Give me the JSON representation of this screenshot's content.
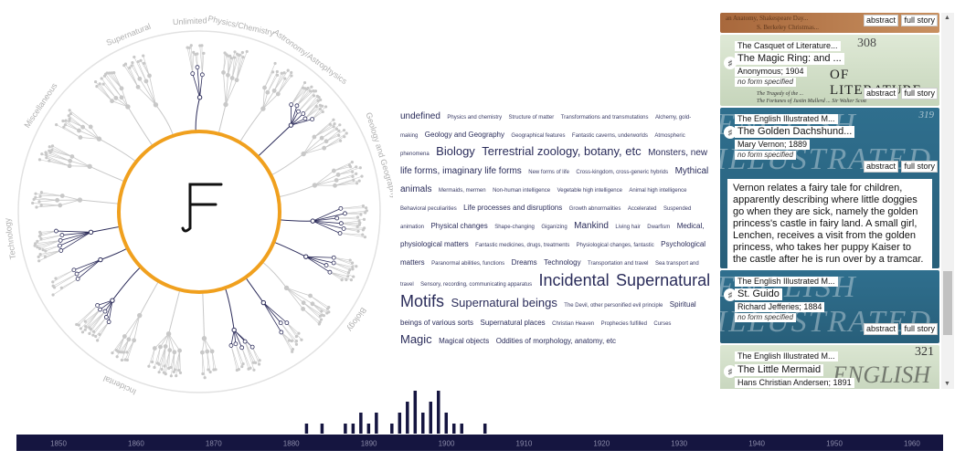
{
  "tree": {
    "categories": [
      "Miscellaneous",
      "Supernatural",
      "Unlimited",
      "Physics/Chemistry",
      "Astronomy/Astrophysics",
      "Geology and Geography",
      "Biology",
      "Incidental",
      "Technology"
    ],
    "logo": "ꟻ"
  },
  "cloud": [
    {
      "t": "undefined",
      "s": 3
    },
    {
      "t": "Physics and chemistry",
      "s": 1
    },
    {
      "t": "Structure of matter",
      "s": 1
    },
    {
      "t": "Transformations and transmutations",
      "s": 1
    },
    {
      "t": "Alchemy, gold-making",
      "s": 1
    },
    {
      "t": "Geology and Geography",
      "s": 2
    },
    {
      "t": "Geographical features",
      "s": 1
    },
    {
      "t": "Fantastic caverns, underworlds",
      "s": 1
    },
    {
      "t": "Atmospheric phenomena",
      "s": 1
    },
    {
      "t": "Biology",
      "s": 4
    },
    {
      "t": "Terrestrial zoology, botany, etc",
      "s": 4
    },
    {
      "t": "Monsters, new life forms, imaginary life forms",
      "s": 3
    },
    {
      "t": "New forms of life",
      "s": 1
    },
    {
      "t": "Cross-kingdom, cross-generic hybrids",
      "s": 1
    },
    {
      "t": "Mythical animals",
      "s": 3
    },
    {
      "t": "Mermaids, mermen",
      "s": 1
    },
    {
      "t": "Non-human intelligence",
      "s": 1
    },
    {
      "t": "Vegetable high intelligence",
      "s": 1
    },
    {
      "t": "Animal high intelligence",
      "s": 1
    },
    {
      "t": "Behavioral peculiarities",
      "s": 1
    },
    {
      "t": "Life processes and disruptions",
      "s": 2
    },
    {
      "t": "Growth abnormalities",
      "s": 1
    },
    {
      "t": "Accelerated",
      "s": 1
    },
    {
      "t": "Suspended animation",
      "s": 1
    },
    {
      "t": "Physical changes",
      "s": 2
    },
    {
      "t": "Shape-changing",
      "s": 1
    },
    {
      "t": "Giganizing",
      "s": 1
    },
    {
      "t": "Mankind",
      "s": 3
    },
    {
      "t": "Living hair",
      "s": 1
    },
    {
      "t": "Dwarfism",
      "s": 1
    },
    {
      "t": "Medical, physiological matters",
      "s": 2
    },
    {
      "t": "Fantastic medicines, drugs, treatments",
      "s": 1
    },
    {
      "t": "Physiological changes, fantastic",
      "s": 1
    },
    {
      "t": "Psychological matters",
      "s": 2
    },
    {
      "t": "Paranormal abilities, functions",
      "s": 1
    },
    {
      "t": "Dreams",
      "s": 2
    },
    {
      "t": "Technology",
      "s": 2
    },
    {
      "t": "Transportation and travel",
      "s": 1
    },
    {
      "t": "Sea transport and travel",
      "s": 1
    },
    {
      "t": "Sensory, recording, communicating apparatus",
      "s": 1
    },
    {
      "t": "Incidental",
      "s": 5
    },
    {
      "t": "Supernatural Motifs",
      "s": 5
    },
    {
      "t": "Supernatural beings",
      "s": 4
    },
    {
      "t": "The Devil, other personified evil principle",
      "s": 1
    },
    {
      "t": "Spiritual beings of various sorts",
      "s": 2
    },
    {
      "t": "Supernatural places",
      "s": 2
    },
    {
      "t": "Christian Heaven",
      "s": 1
    },
    {
      "t": "Prophecies fulfilled",
      "s": 1
    },
    {
      "t": "Curses",
      "s": 1
    },
    {
      "t": "Magic",
      "s": 4
    },
    {
      "t": "Magical objects",
      "s": 2
    },
    {
      "t": "Oddities of morphology, anatomy, etc",
      "s": 2
    }
  ],
  "stories": {
    "btn_abstract": "abstract",
    "btn_full": "full story",
    "no_form": "no form specified",
    "card0": {
      "bg_line1": "an Anatomy, Shakespeare Day...",
      "bg_line2": "S. Berkeley Christmas..."
    },
    "card1": {
      "source": "The Casquet of Literature...",
      "title": "The Magic Ring: and ...",
      "byline": "Anonymous; 1904",
      "bg_num": "308",
      "bg_head": "OF LITERATURE",
      "bg_line1": "The Tragedy of the ...",
      "bg_line2": "The Fortunes of Justin Mullerd ... Sir Walter Scott"
    },
    "card2": {
      "source": "The English Illustrated M...",
      "title": "The Golden Dachshund...",
      "byline": "Mary Vernon; 1889",
      "bg_num": "319",
      "bg_head": "ENGLISH ILLUSTRATED",
      "abstract": "Vernon relates a fairy tale for children, apparently describing where little doggies go when they are sick, namely the golden princess's castle in fairy land. A small girl, Lenchen, receives a visit from the golden princess, who takes her puppy Kaiser to the castle after he is run over by a tramcar."
    },
    "card3": {
      "source": "The English Illustrated M...",
      "title": "St. Guido",
      "byline": "Richard Jefferies; 1884",
      "bg_head": "ENGLISH ILLUSTRATED"
    },
    "card4": {
      "source": "The English Illustrated M...",
      "title": "The Little Mermaid",
      "byline": "Hans Christian Andersen; 1891",
      "bg_num": "321",
      "bg_head": "ENGLISH"
    }
  },
  "timeline": {
    "years": [
      "1850",
      "1860",
      "1870",
      "1880",
      "1890",
      "1900",
      "1910",
      "1920",
      "1930",
      "1940",
      "1950",
      "1960"
    ],
    "counts": [
      [
        1882,
        1
      ],
      [
        1884,
        1
      ],
      [
        1887,
        1
      ],
      [
        1888,
        1
      ],
      [
        1889,
        2
      ],
      [
        1890,
        1
      ],
      [
        1891,
        2
      ],
      [
        1893,
        1
      ],
      [
        1894,
        2
      ],
      [
        1895,
        3
      ],
      [
        1896,
        4
      ],
      [
        1897,
        2
      ],
      [
        1898,
        3
      ],
      [
        1899,
        4
      ],
      [
        1900,
        2
      ],
      [
        1901,
        1
      ],
      [
        1902,
        1
      ],
      [
        1905,
        1
      ]
    ]
  },
  "colors": {
    "ring": "#f0a01e",
    "tree_grey": "#c8c8c8",
    "tree_dark": "#2c2c5a",
    "timeline_bg": "#151540",
    "card_teal": "#2d6a88",
    "card_green": "#cfdcc4",
    "card_tan": "#b47a4a"
  }
}
